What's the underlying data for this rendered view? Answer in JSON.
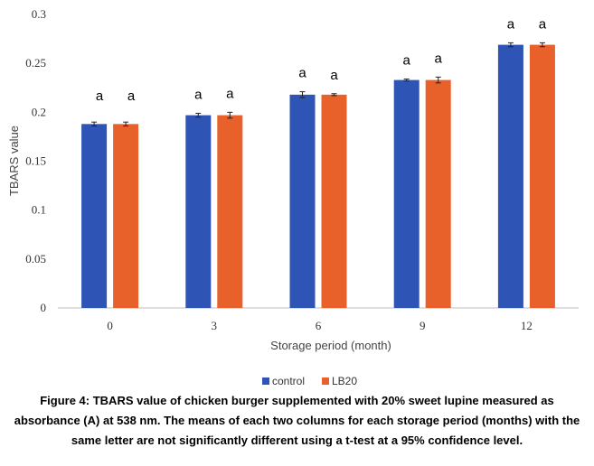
{
  "chart_data": {
    "type": "bar",
    "categories": [
      "0",
      "3",
      "6",
      "9",
      "12"
    ],
    "series": [
      {
        "name": "control",
        "color": "#2e54b5",
        "values": [
          0.188,
          0.197,
          0.218,
          0.233,
          0.269
        ],
        "errors": [
          0.002,
          0.002,
          0.003,
          0.001,
          0.002
        ],
        "letters": [
          "",
          "a",
          "a",
          "a",
          "a"
        ]
      },
      {
        "name": "LB20",
        "color": "#e8602a",
        "values": [
          0.188,
          0.197,
          0.218,
          0.233,
          0.269
        ],
        "errors": [
          0.002,
          0.003,
          0.001,
          0.003,
          0.002
        ],
        "letters": [
          "",
          "a",
          "a",
          "a",
          "a"
        ]
      }
    ],
    "extra_letters": [
      {
        "category_index": 0,
        "series_index": 0,
        "text": "a"
      },
      {
        "category_index": 0,
        "series_index": 1,
        "text": "a"
      }
    ],
    "yticks": [
      "0",
      "0.05",
      "0.1",
      "0.15",
      "0.2",
      "0.25",
      "0.3"
    ],
    "ylim": [
      0,
      0.3
    ],
    "xlabel": "Storage period (month)",
    "ylabel": "TBARS value",
    "grid": false,
    "legend_position": "bottom"
  },
  "caption": "Figure 4: TBARS value of chicken burger supplemented with 20% sweet lupine measured as absorbance (A) at 538 nm. The means of each two columns for each storage period (months) with the same letter are not significantly different using a t-test at a 95% confidence level."
}
